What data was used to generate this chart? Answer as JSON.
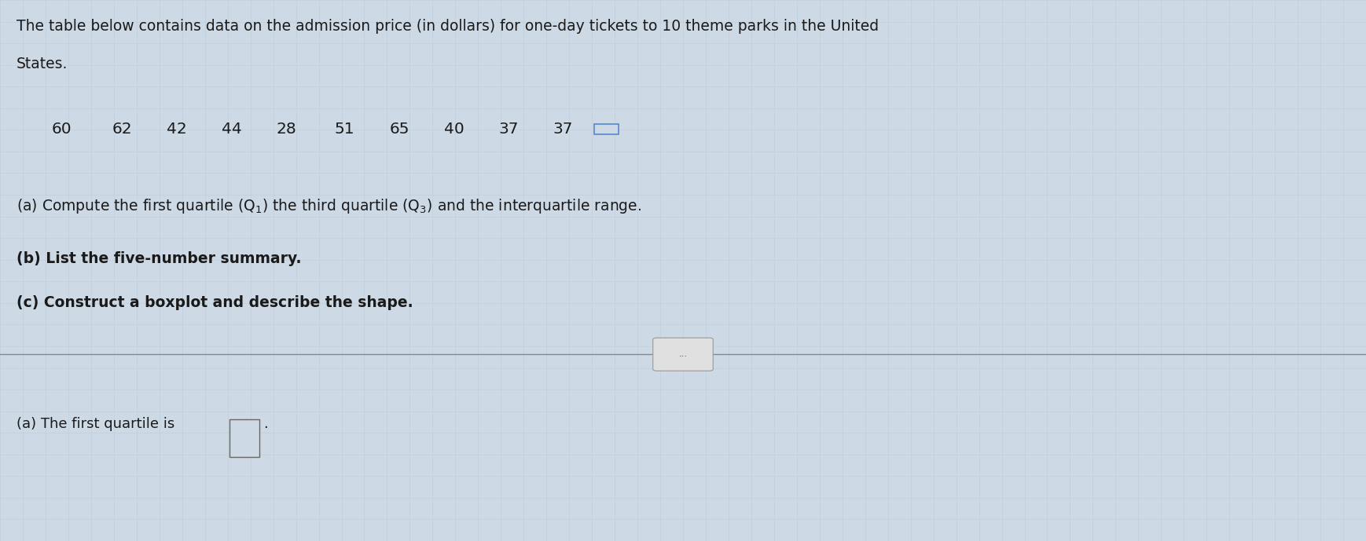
{
  "background_color": "#cdd9e5",
  "grid_color": "#b8c8d8",
  "fig_width": 17.38,
  "fig_height": 6.89,
  "paragraph1_line1": "The table below contains data on the admission price (in dollars) for one-day tickets to 10 theme parks in the United",
  "paragraph1_line2": "States.",
  "data_values": [
    "60",
    "62",
    "42",
    "44",
    "28",
    "51",
    "65",
    "40",
    "37",
    "37"
  ],
  "part_a_text": "(a) Compute the first quartile (Q₁) the third quartile (Q₃) and the interquartile range.",
  "part_b_text": "(b) List the five-number summary.",
  "part_c_text": "(c) Construct a boxplot and describe the shape.",
  "answer_text": "(a) The first quartile is",
  "ellipsis_text": "...",
  "font_size_main": 13.5,
  "font_size_data": 14.5,
  "font_size_answer": 13.0,
  "text_color": "#1a1a1a",
  "divider_color": "#888888",
  "checkbox_color": "#5588cc",
  "ellipsis_bg": "#e0e0e0",
  "ellipsis_border": "#999999"
}
